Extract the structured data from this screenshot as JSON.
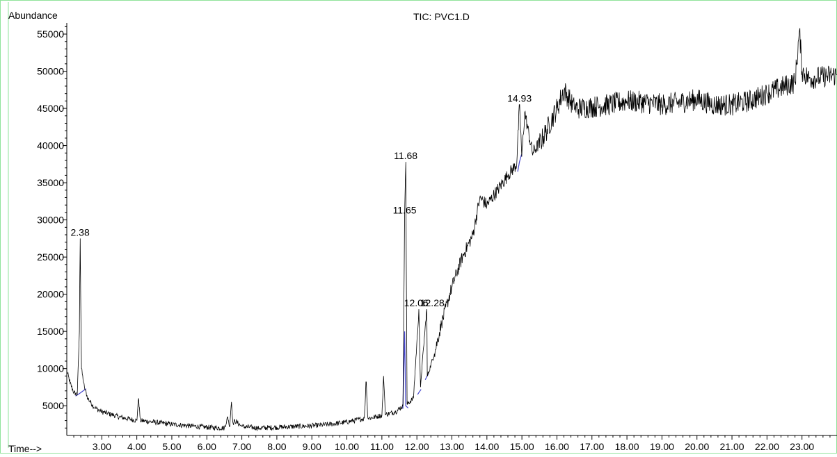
{
  "chart_data": {
    "type": "line",
    "title": "TIC: PVC1.D",
    "ylabel": "Abundance",
    "xlabel": "Time-->",
    "xlim": [
      2.0,
      24.0
    ],
    "ylim": [
      1000,
      56500
    ],
    "xticks": [
      "3.00",
      "4.00",
      "5.00",
      "6.00",
      "7.00",
      "8.00",
      "9.00",
      "10.00",
      "11.00",
      "12.00",
      "13.00",
      "14.00",
      "15.00",
      "16.00",
      "17.00",
      "18.00",
      "19.00",
      "20.00",
      "21.00",
      "22.00",
      "23.00"
    ],
    "yticks": [
      "5000",
      "10000",
      "15000",
      "20000",
      "25000",
      "30000",
      "35000",
      "40000",
      "45000",
      "50000",
      "55000"
    ],
    "series": [
      {
        "color": "#000000",
        "x": [
          2.0,
          2.1,
          2.2,
          2.3,
          2.36,
          2.38,
          2.42,
          2.5,
          2.6,
          2.8,
          3.0,
          3.5,
          4.0,
          4.05,
          4.1,
          4.5,
          5.0,
          5.5,
          6.0,
          6.5,
          6.6,
          6.65,
          6.7,
          6.75,
          6.8,
          7.0,
          7.5,
          8.0,
          8.5,
          9.0,
          9.5,
          10.0,
          10.5,
          10.55,
          10.6,
          11.0,
          11.05,
          11.1,
          11.4,
          11.6,
          11.65,
          11.68,
          11.72,
          11.9,
          12.06,
          12.1,
          12.28,
          12.3,
          12.5,
          12.7,
          13.0,
          13.3,
          13.6,
          13.8,
          14.0,
          14.3,
          14.6,
          14.85,
          14.93,
          15.0,
          15.08,
          15.3,
          15.6,
          16.0,
          16.2,
          16.5,
          17.0,
          17.5,
          18.0,
          18.5,
          19.0,
          19.5,
          20.0,
          20.5,
          21.0,
          21.5,
          22.0,
          22.5,
          22.8,
          22.93,
          23.0,
          23.2,
          23.5,
          24.0
        ],
        "y": [
          9700,
          8000,
          6800,
          6500,
          15000,
          27500,
          10000,
          7500,
          6000,
          4700,
          4200,
          3500,
          3000,
          6000,
          3000,
          2800,
          2500,
          2300,
          2100,
          2000,
          3500,
          2200,
          5500,
          2600,
          3000,
          2200,
          2000,
          2100,
          2200,
          2300,
          2500,
          2800,
          3300,
          8200,
          3300,
          3700,
          9000,
          3800,
          4200,
          5000,
          30500,
          37800,
          5200,
          6000,
          18000,
          7500,
          18000,
          9000,
          12000,
          16000,
          21000,
          25000,
          28000,
          33000,
          32000,
          34000,
          36000,
          37500,
          45500,
          38500,
          44500,
          39000,
          41000,
          45000,
          47500,
          45000,
          45200,
          45500,
          46000,
          45800,
          45500,
          45800,
          46200,
          45500,
          45500,
          46000,
          47000,
          48000,
          48500,
          55500,
          50000,
          49000,
          49200,
          49500
        ]
      }
    ],
    "baselines": [
      {
        "color": "#4444cc",
        "x": [
          2.25,
          2.38,
          2.55
        ],
        "y": [
          6300,
          6700,
          7300
        ]
      },
      {
        "color": "#4444cc",
        "x": [
          11.6,
          11.65,
          11.68,
          11.75
        ],
        "y": [
          4600,
          15000,
          5000,
          4700
        ]
      },
      {
        "color": "#4444cc",
        "x": [
          12.02,
          12.06,
          12.12
        ],
        "y": [
          6500,
          6800,
          7200
        ]
      },
      {
        "color": "#4444cc",
        "x": [
          12.24,
          12.28,
          12.33
        ],
        "y": [
          8500,
          8900,
          9300
        ]
      },
      {
        "color": "#4444cc",
        "x": [
          14.88,
          14.93,
          14.99
        ],
        "y": [
          36500,
          37800,
          38800
        ]
      }
    ],
    "peak_labels": [
      {
        "text": "2.38",
        "x": 2.38,
        "y": 27500
      },
      {
        "text": "11.68",
        "x": 11.68,
        "y": 37800
      },
      {
        "text": "11.65",
        "x": 11.65,
        "y": 30500
      },
      {
        "text": "12.06",
        "x": 12.06,
        "y": 18000
      },
      {
        "text": "12.28",
        "x": 12.28,
        "y": 18000
      },
      {
        "text": "14.93",
        "x": 14.93,
        "y": 45500
      }
    ]
  }
}
